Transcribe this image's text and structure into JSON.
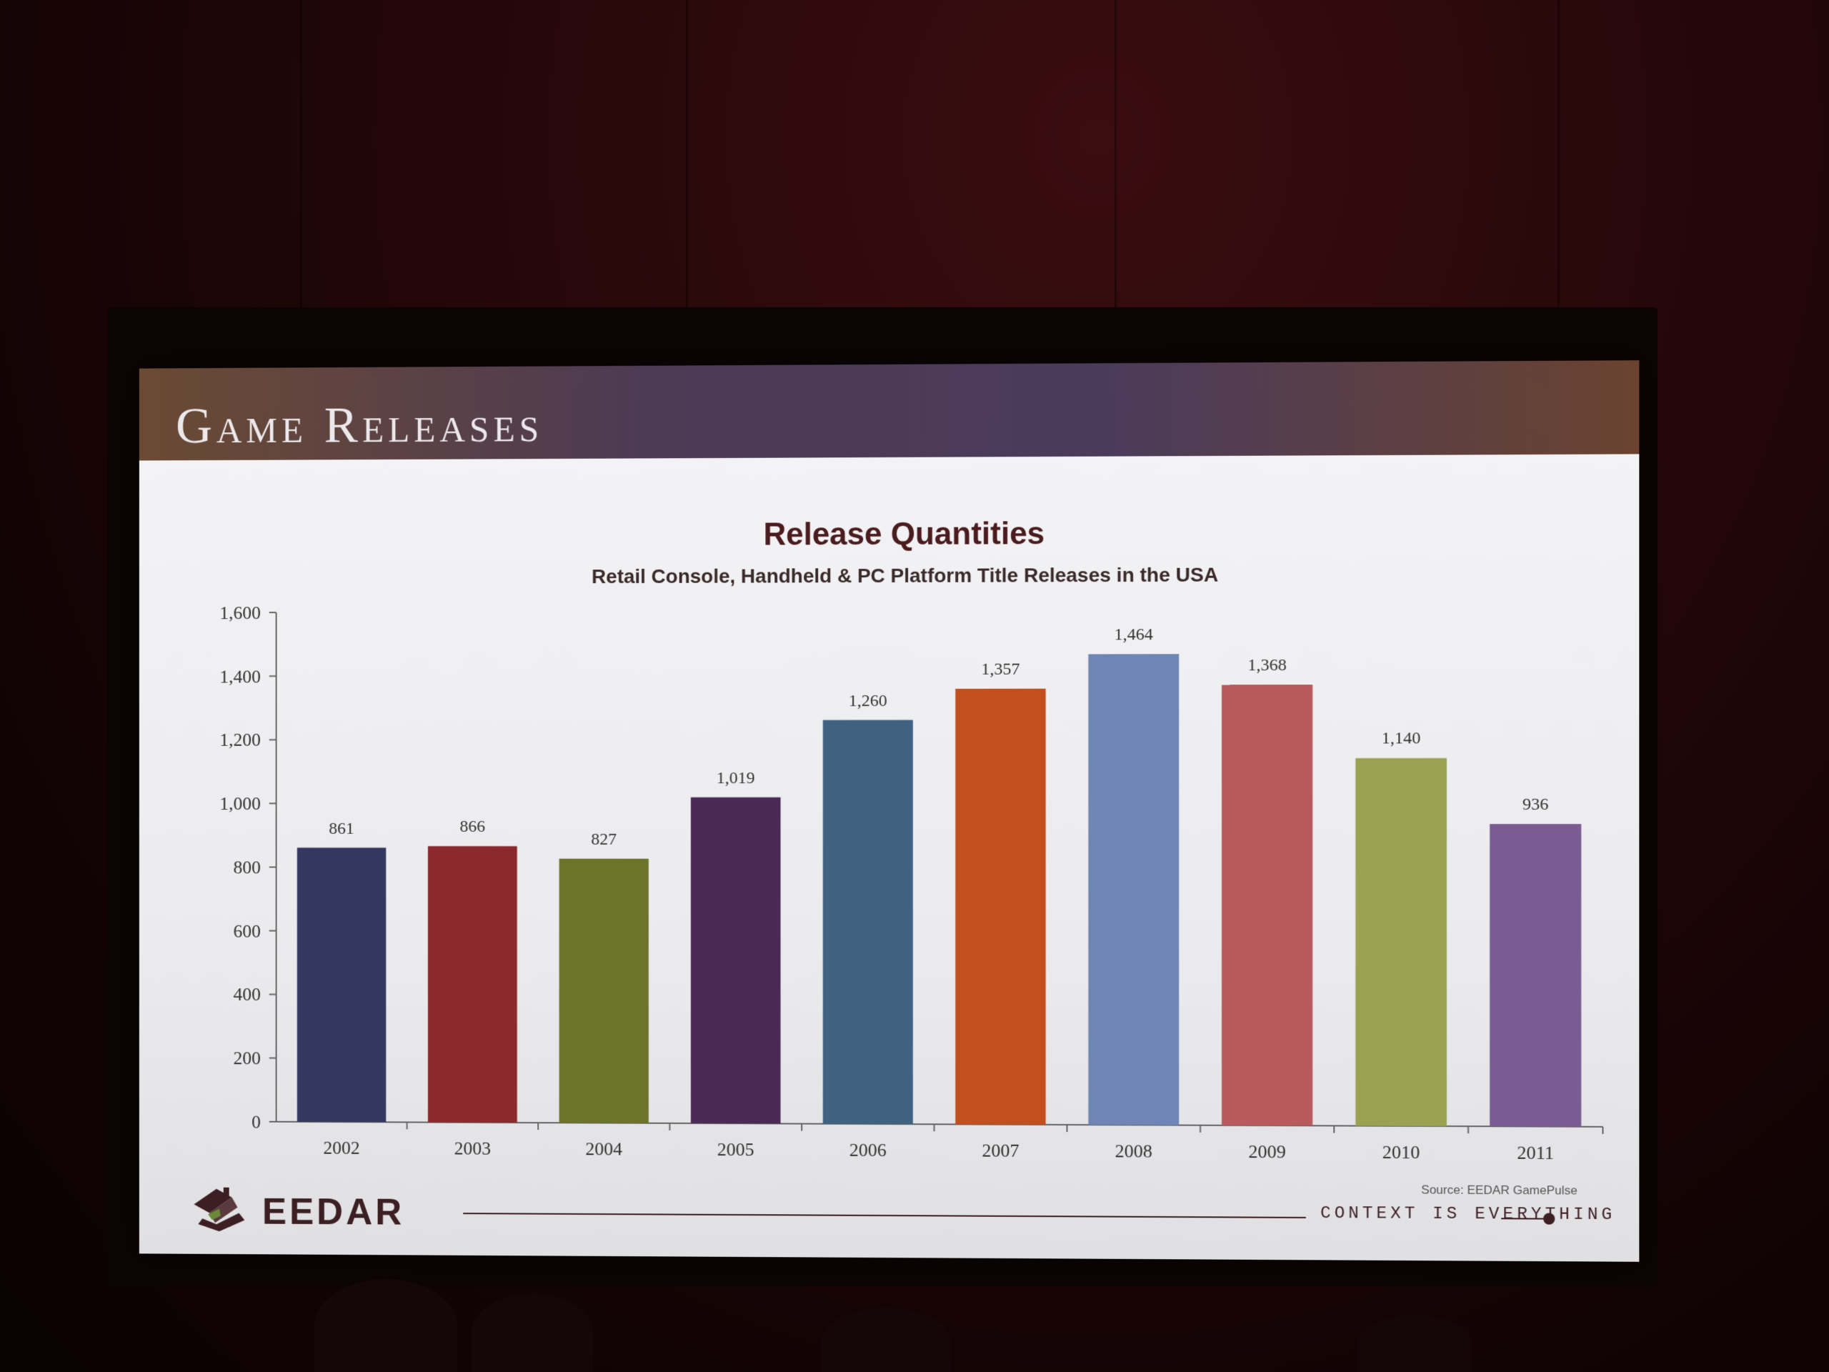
{
  "slide": {
    "title": "Game Releases",
    "source": "Source: EEDAR GamePulse",
    "brand": "EEDAR",
    "tagline": "CONTEXT IS EVERYTHING"
  },
  "colors": {
    "header_left": "#6b4a33",
    "header_mid": "#4b3b5b",
    "brand_text": "#3c1f23"
  },
  "chart_data": {
    "type": "bar",
    "title": "Release Quantities",
    "subtitle": "Retail Console, Handheld & PC Platform Title Releases in the USA",
    "xlabel": "",
    "ylabel": "",
    "ylim": [
      0,
      1600
    ],
    "yticks": [
      "0",
      "200",
      "400",
      "600",
      "800",
      "1,000",
      "1,200",
      "1,400",
      "1,600"
    ],
    "ytick_values": [
      0,
      200,
      400,
      600,
      800,
      1000,
      1200,
      1400,
      1600
    ],
    "grid": false,
    "categories": [
      "2002",
      "2003",
      "2004",
      "2005",
      "2006",
      "2007",
      "2008",
      "2009",
      "2010",
      "2011"
    ],
    "values": [
      861,
      866,
      827,
      1019,
      1260,
      1357,
      1464,
      1368,
      1140,
      936
    ],
    "value_labels": [
      "861",
      "866",
      "827",
      "1,019",
      "1,260",
      "1,357",
      "1,464",
      "1,368",
      "1,140",
      "936"
    ],
    "bar_colors": [
      "#34375f",
      "#8b2a2e",
      "#6b7428",
      "#4a2a55",
      "#3e6280",
      "#c2501e",
      "#6f86b5",
      "#b8595d",
      "#9aa251",
      "#7a5c92"
    ]
  }
}
